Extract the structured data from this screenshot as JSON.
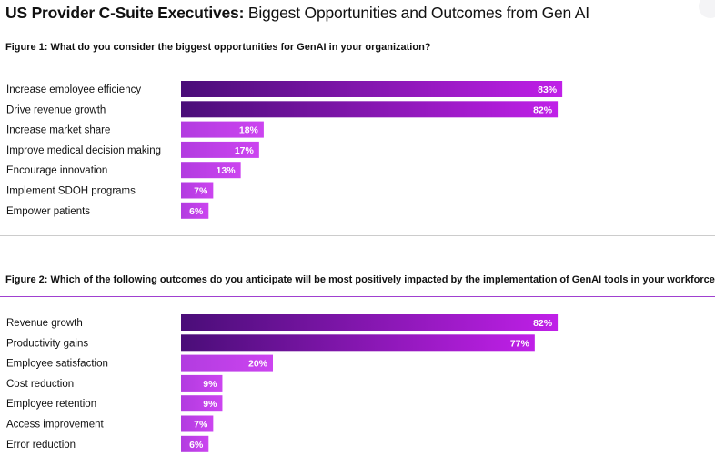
{
  "title": {
    "bold": "US Provider C-Suite Executives:",
    "regular": " Biggest Opportunities and Outcomes from Gen AI"
  },
  "colors": {
    "bar_start": "#4a0d78",
    "bar_end": "#c020e8",
    "small_bar_start": "#b23ce0",
    "small_bar_end": "#cc44f0",
    "rule_purple": "#a040d0",
    "rule_gray": "#cccccc",
    "value_text": "#ffffff"
  },
  "chart_data": [
    {
      "type": "bar",
      "orientation": "horizontal",
      "question": "Figure 1: What do you consider the biggest opportunities for GenAI in your organization?",
      "categories": [
        "Increase employee efficiency",
        "Drive revenue growth",
        "Increase market share",
        "Improve medical decision making",
        "Encourage innovation",
        "Implement SDOH programs",
        "Empower patients"
      ],
      "values": [
        83,
        82,
        18,
        17,
        13,
        7,
        6
      ],
      "value_labels": [
        "83%",
        "82%",
        "18%",
        "17%",
        "13%",
        "7%",
        "6%"
      ],
      "unit": "%",
      "xlim": [
        0,
        100
      ],
      "grid": false,
      "legend": "none"
    },
    {
      "type": "bar",
      "orientation": "horizontal",
      "question": "Figure 2: Which of the following outcomes do you anticipate will be most positively impacted by the implementation of GenAI tools in your workforce?",
      "categories": [
        "Revenue growth",
        "Productivity gains",
        "Employee satisfaction",
        "Cost reduction",
        "Employee retention",
        "Access improvement",
        "Error reduction"
      ],
      "values": [
        82,
        77,
        20,
        9,
        9,
        7,
        6
      ],
      "value_labels": [
        "82%",
        "77%",
        "20%",
        "9%",
        "9%",
        "7%",
        "6%"
      ],
      "unit": "%",
      "xlim": [
        0,
        100
      ],
      "grid": false,
      "legend": "none"
    }
  ]
}
